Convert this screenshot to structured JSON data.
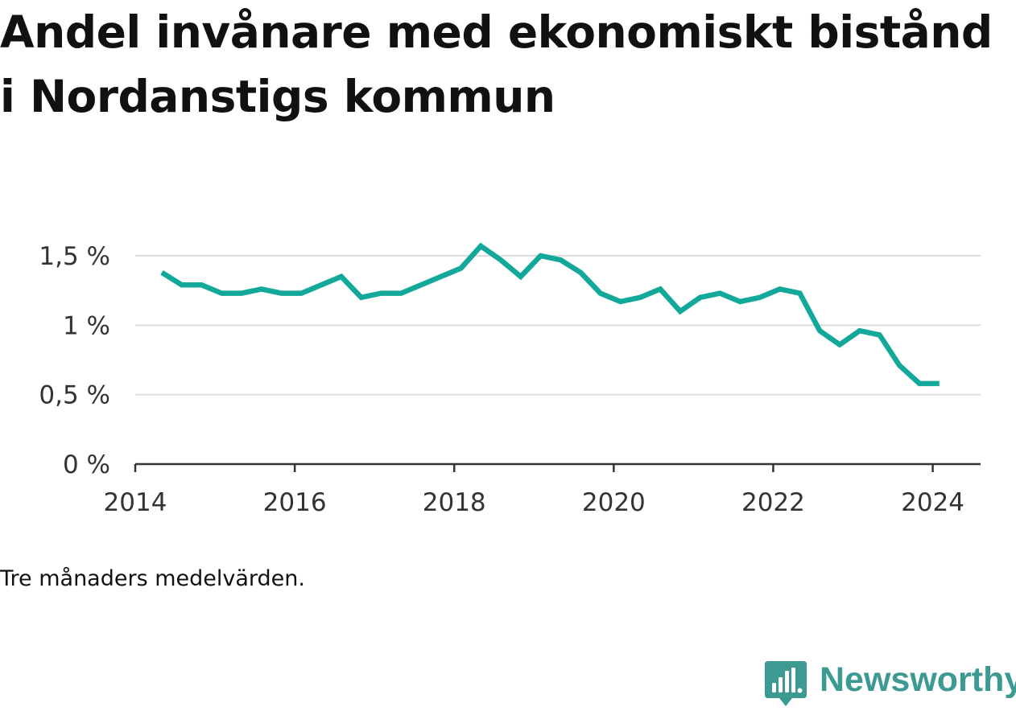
{
  "title": "Andel invånare med ekonomiskt bistånd i Nordanstigs kommun",
  "footnote": "Tre månaders medelvärden.",
  "brand": {
    "name": "Newsworthy",
    "icon": "bar-chart-speech-bubble-icon",
    "color": "#3d9a93"
  },
  "chart_data": {
    "type": "line",
    "title": "Andel invånare med ekonomiskt bistånd i Nordanstigs kommun",
    "xlabel": "",
    "ylabel": "",
    "grid": true,
    "legend": "none",
    "xlim": [
      2014.0,
      2024.6
    ],
    "ylim": [
      0,
      1.5
    ],
    "x_ticks": [
      2014,
      2016,
      2018,
      2020,
      2022,
      2024
    ],
    "x_tick_labels": [
      "2014",
      "2016",
      "2018",
      "2020",
      "2022",
      "2024"
    ],
    "y_ticks": [
      0,
      0.5,
      1,
      1.5
    ],
    "y_tick_labels": [
      "0 %",
      "0,5 %",
      "1 %",
      "1,5 %"
    ],
    "series": [
      {
        "color": "#12a89a",
        "x": [
          "2014-05",
          "2014-08",
          "2014-11",
          "2015-02",
          "2015-05",
          "2015-08",
          "2015-11",
          "2016-02",
          "2016-05",
          "2016-08",
          "2016-11",
          "2017-02",
          "2017-05",
          "2017-08",
          "2017-11",
          "2018-02",
          "2018-05",
          "2018-08",
          "2018-11",
          "2019-02",
          "2019-05",
          "2019-08",
          "2019-11",
          "2020-02",
          "2020-05",
          "2020-08",
          "2020-11",
          "2021-02",
          "2021-05",
          "2021-08",
          "2021-11",
          "2022-02",
          "2022-05",
          "2022-08",
          "2022-11",
          "2023-02",
          "2023-05",
          "2023-08",
          "2023-11",
          "2024-02"
        ],
        "values": [
          1.38,
          1.29,
          1.29,
          1.23,
          1.23,
          1.26,
          1.23,
          1.23,
          1.29,
          1.35,
          1.2,
          1.23,
          1.23,
          1.29,
          1.35,
          1.41,
          1.57,
          1.47,
          1.35,
          1.5,
          1.47,
          1.38,
          1.23,
          1.17,
          1.2,
          1.26,
          1.1,
          1.2,
          1.23,
          1.17,
          1.2,
          1.26,
          1.23,
          0.96,
          0.86,
          0.96,
          0.93,
          0.71,
          0.58,
          0.58
        ]
      }
    ]
  }
}
